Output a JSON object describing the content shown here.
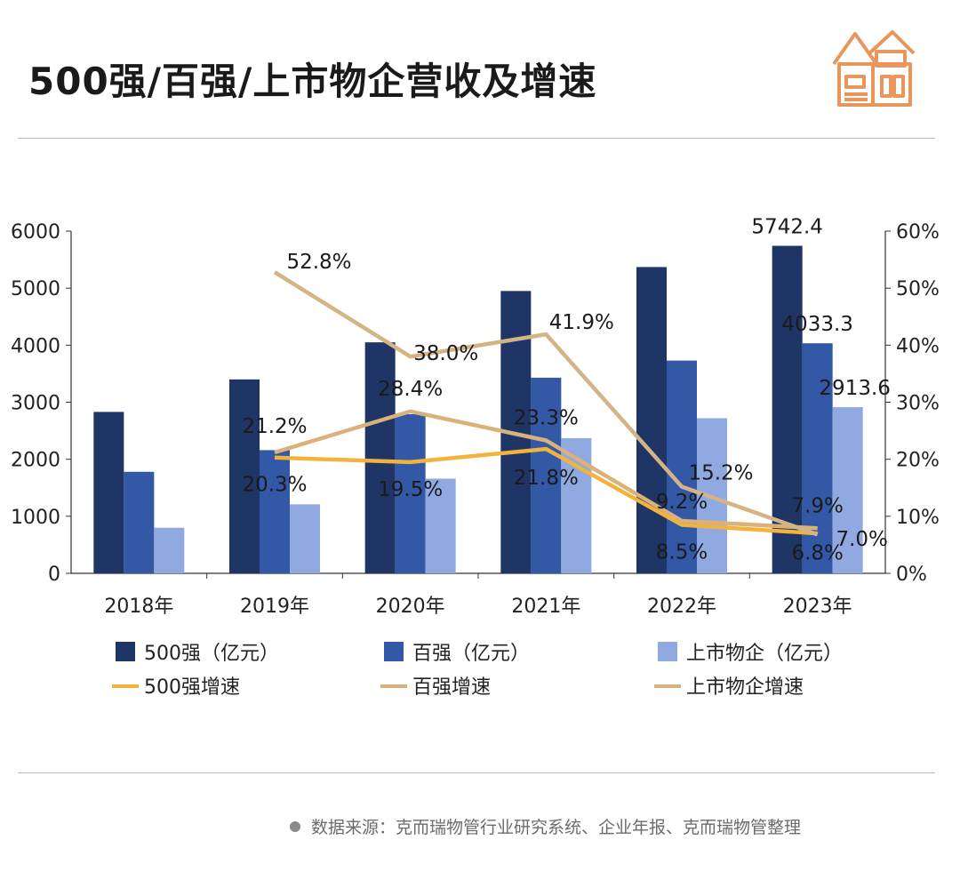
{
  "page": {
    "title": "500强/百强/上市物企营收及增速"
  },
  "footer": {
    "source": "数据来源：克而瑞物管行业研究系统、企业年报、克而瑞物管整理"
  },
  "colors": {
    "s500": "#1f3566",
    "s100": "#3358a6",
    "listed": "#90a9e0",
    "g500": "#f2b33d",
    "g100": "#d9b27a",
    "glisted": "#d4b385",
    "logo": "#e8965c"
  },
  "chart_data": {
    "type": "bar",
    "categories": [
      "2018年",
      "2019年",
      "2020年",
      "2021年",
      "2022年",
      "2023年"
    ],
    "ylim": [
      0,
      6000
    ],
    "y_ticks": [
      "0",
      "1000",
      "2000",
      "3000",
      "4000",
      "5000",
      "6000"
    ],
    "y2lim": [
      0,
      60
    ],
    "y2_ticks": [
      "0%",
      "10%",
      "20%",
      "30%",
      "40%",
      "50%",
      "60%"
    ],
    "series": [
      {
        "name": "500强（亿元）",
        "values": [
          2830,
          3400,
          4050,
          4950,
          5370,
          5742.4
        ],
        "value_labels": [
          "",
          "",
          "",
          "",
          "",
          "5742.4"
        ]
      },
      {
        "name": "百强（亿元）",
        "values": [
          1780,
          2160,
          2790,
          3430,
          3730,
          4033.3
        ],
        "value_labels": [
          "",
          "",
          "",
          "",
          "",
          "4033.3"
        ]
      },
      {
        "name": "上市物企（亿元）",
        "values": [
          800,
          1210,
          1660,
          2370,
          2720,
          2913.6
        ],
        "value_labels": [
          "",
          "",
          "",
          "",
          "",
          "2913.6"
        ]
      }
    ],
    "lines": [
      {
        "name": "500强增速",
        "values": [
          null,
          20.3,
          19.5,
          21.8,
          8.5,
          7.0
        ],
        "labels": [
          "",
          "20.3%",
          "19.5%",
          "21.8%",
          "8.5%",
          "7.0%"
        ]
      },
      {
        "name": "百强增速",
        "values": [
          null,
          21.2,
          28.4,
          23.3,
          9.2,
          7.9
        ],
        "labels": [
          "",
          "21.2%",
          "28.4%",
          "23.3%",
          "9.2%",
          "7.9%"
        ]
      },
      {
        "name": "上市物企增速",
        "values": [
          null,
          52.8,
          38.0,
          41.9,
          15.2,
          6.8
        ],
        "labels": [
          "",
          "52.8%",
          "38.0%",
          "41.9%",
          "15.2%",
          "6.8%"
        ]
      }
    ],
    "legend": "bottom"
  }
}
